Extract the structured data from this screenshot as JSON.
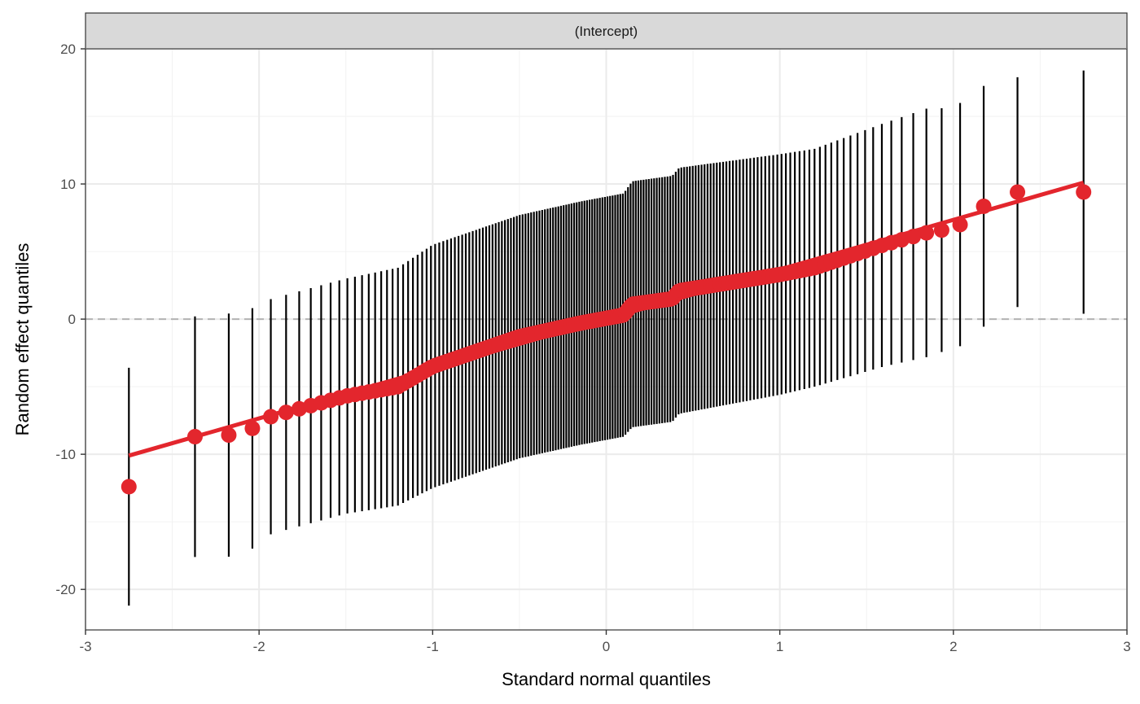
{
  "chart_data": {
    "type": "scatter",
    "facet_label": "(Intercept)",
    "xlabel": "Standard normal quantiles",
    "ylabel": "Random effect quantiles",
    "xlim": [
      -3,
      3
    ],
    "ylim": [
      -23,
      20
    ],
    "x_ticks": [
      -3,
      -2,
      -1,
      0,
      1,
      2,
      3
    ],
    "x_tick_labels": [
      "-3",
      "-2",
      "-1",
      "0",
      "1",
      "2",
      "3"
    ],
    "y_ticks": [
      -20,
      -10,
      0,
      10,
      20
    ],
    "y_tick_labels": [
      "-20",
      "-10",
      "0",
      "10",
      "20"
    ],
    "reference_line": {
      "y": 0,
      "style": "dashed",
      "color": "#b3b3b3"
    },
    "fit_line": {
      "x_start": -2.75,
      "y_start": -10.1,
      "x_end": 2.75,
      "y_end": 10.1,
      "color": "#e3262d"
    },
    "error_bar_color": "#000000",
    "point_color": "#e3262d",
    "grid": true,
    "series": [
      {
        "n": 170,
        "x_min": -2.75,
        "x_max": 2.75,
        "anchors": [
          {
            "x": -2.75,
            "y": -12.4,
            "half_width": 8.8
          },
          {
            "x": -2.37,
            "y": -8.7,
            "half_width": 8.9
          },
          {
            "x": -2.18,
            "y": -8.6,
            "half_width": 9.0
          },
          {
            "x": -2.04,
            "y": -8.1,
            "half_width": 8.9
          },
          {
            "x": -1.93,
            "y": -7.2,
            "half_width": 8.7
          },
          {
            "x": -1.5,
            "y": -5.7,
            "half_width": 8.7
          },
          {
            "x": -1.2,
            "y": -5.0,
            "half_width": 8.8
          },
          {
            "x": -1.0,
            "y": -3.5,
            "half_width": 9.0
          },
          {
            "x": -0.5,
            "y": -1.3,
            "half_width": 9.0
          },
          {
            "x": -0.15,
            "y": -0.3,
            "half_width": 9.0
          },
          {
            "x": 0.1,
            "y": 0.3,
            "half_width": 9.0
          },
          {
            "x": 0.15,
            "y": 1.1,
            "half_width": 9.1
          },
          {
            "x": 0.38,
            "y": 1.5,
            "half_width": 9.1
          },
          {
            "x": 0.42,
            "y": 2.1,
            "half_width": 9.1
          },
          {
            "x": 1.0,
            "y": 3.3,
            "half_width": 8.9
          },
          {
            "x": 1.2,
            "y": 3.8,
            "half_width": 8.8
          },
          {
            "x": 1.6,
            "y": 5.5,
            "half_width": 9.0
          },
          {
            "x": 1.85,
            "y": 6.4,
            "half_width": 9.2
          },
          {
            "x": 1.94,
            "y": 6.6,
            "half_width": 9.0
          },
          {
            "x": 2.04,
            "y": 7.0,
            "half_width": 9.0
          },
          {
            "x": 2.18,
            "y": 8.4,
            "half_width": 8.9
          },
          {
            "x": 2.37,
            "y": 9.4,
            "half_width": 8.5
          },
          {
            "x": 2.75,
            "y": 9.4,
            "half_width": 9.0
          }
        ]
      }
    ]
  }
}
